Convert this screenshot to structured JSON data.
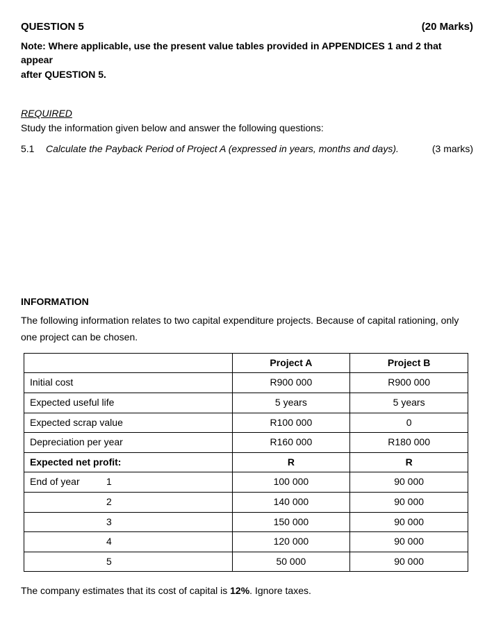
{
  "header": {
    "question_label": "QUESTION 5",
    "marks_label": "(20 Marks)"
  },
  "note": {
    "label": "Note:",
    "line1_rest": "  Where applicable, use the present value tables provided in APPENDICES 1 and 2 that appear",
    "line2": "after QUESTION 5."
  },
  "required": {
    "heading": "REQUIRED",
    "study": "Study the information given below and answer the following questions:"
  },
  "subq": {
    "num": "5.1",
    "text": "Calculate the Payback Period of Project A (expressed in years, months and days).",
    "marks": "(3 marks)"
  },
  "info": {
    "heading": "INFORMATION",
    "text": "The following information relates to two capital expenditure projects.  Because of capital rationing, only one project can be chosen."
  },
  "table": {
    "colA_header": "Project A",
    "colB_header": "Project B",
    "rows": [
      {
        "label": "Initial cost",
        "a": "R900 000",
        "b": "R900 000"
      },
      {
        "label": "Expected useful life",
        "a": "5 years",
        "b": "5 years"
      },
      {
        "label": "Expected scrap value",
        "a": "R100 000",
        "b": "0"
      },
      {
        "label": "Depreciation per year",
        "a": "R160 000",
        "b": "R180 000"
      }
    ],
    "profit_header": {
      "label": "Expected net profit:",
      "a": "R",
      "b": "R"
    },
    "year_prefix": "End of year",
    "years": [
      {
        "y": "1",
        "a": "100 000",
        "b": "90 000"
      },
      {
        "y": "2",
        "a": "140 000",
        "b": "90 000"
      },
      {
        "y": "3",
        "a": "150 000",
        "b": "90 000"
      },
      {
        "y": "4",
        "a": "120 000",
        "b": "90 000"
      },
      {
        "y": "5",
        "a": "50 000",
        "b": "90 000"
      }
    ]
  },
  "closing": {
    "pre": "The company estimates that its cost of capital is ",
    "pct": "12%",
    "post": ".  Ignore taxes."
  }
}
